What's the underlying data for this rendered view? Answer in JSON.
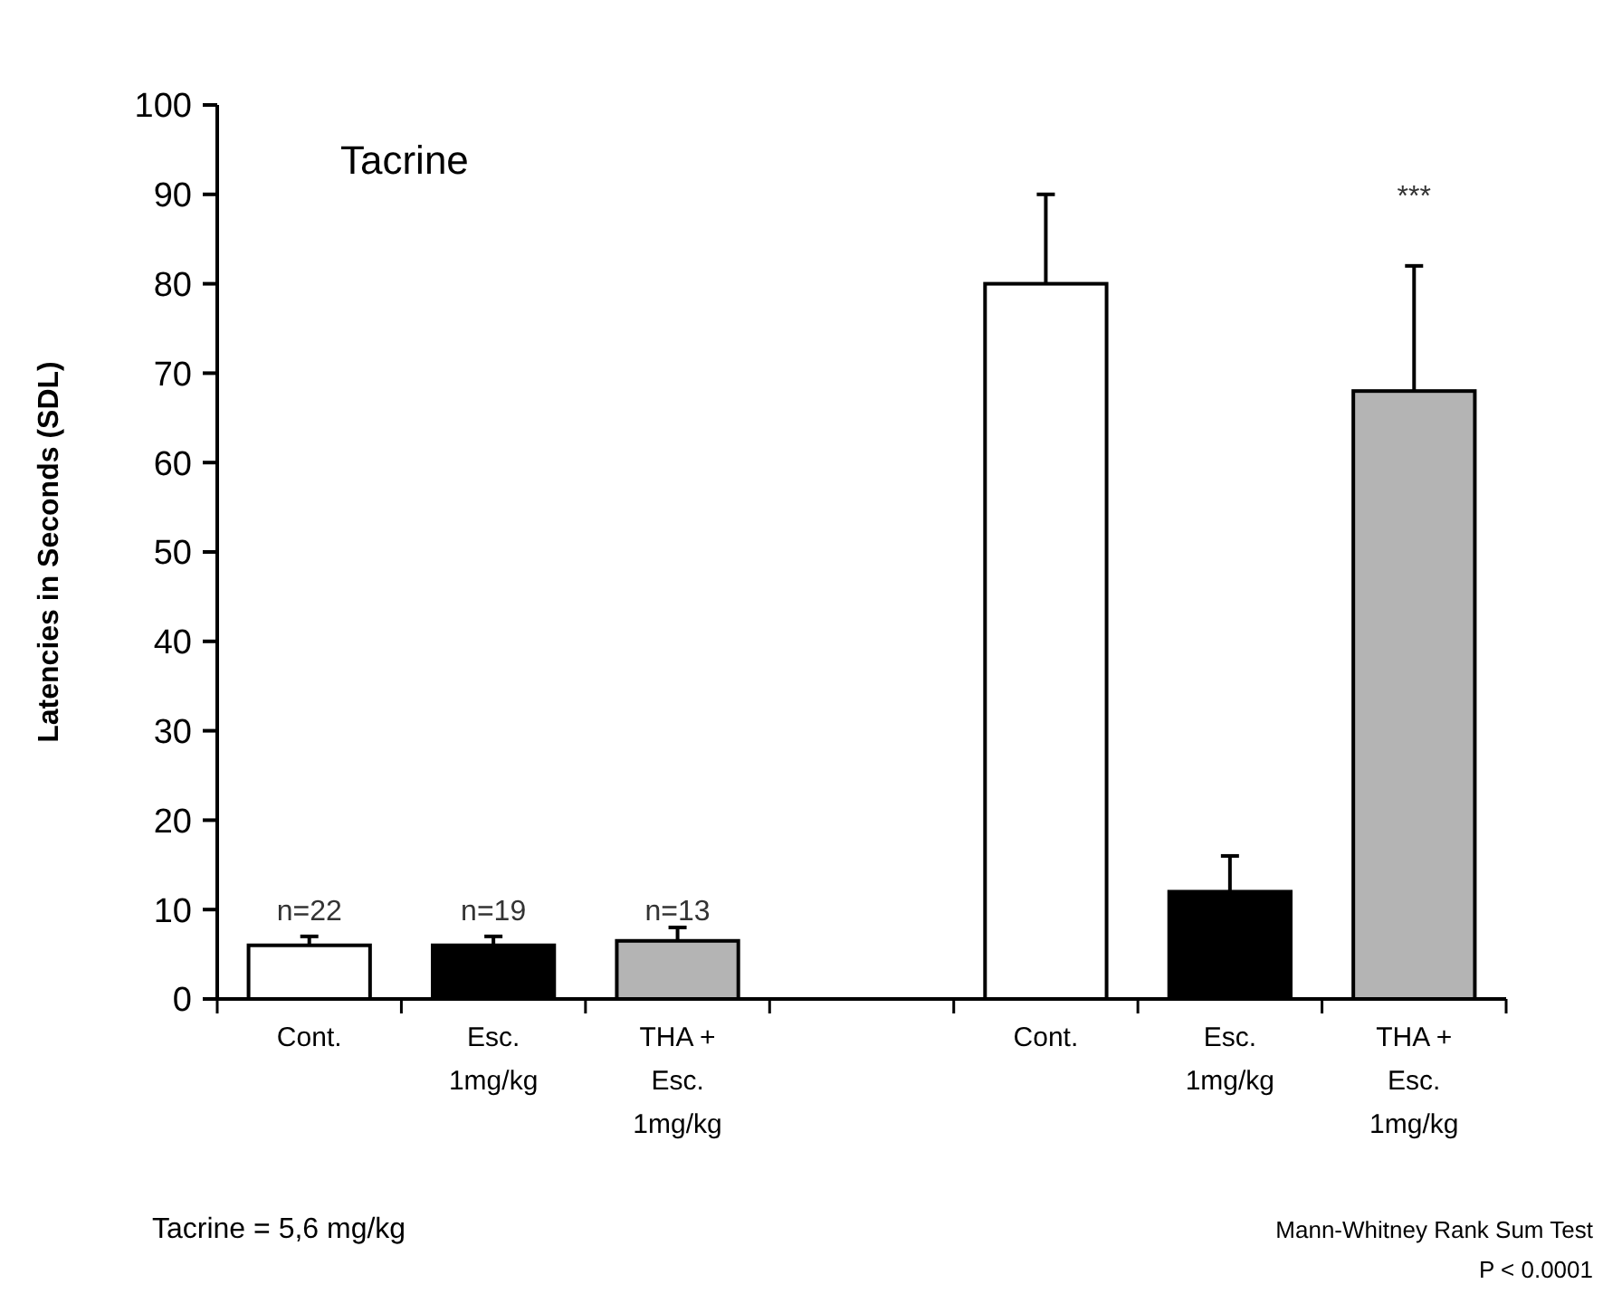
{
  "chart_data": {
    "type": "bar",
    "title": "Tacrine",
    "ylabel": "Latencies in Seconds   (SDL)",
    "categories": [
      "Cont.",
      "Esc.\n1mg/kg",
      "THA +\nEsc.\n1mg/kg",
      null,
      "Cont.",
      "Esc.\n1mg/kg",
      "THA +\nEsc.\n1mg/kg"
    ],
    "values": [
      6,
      6,
      6.5,
      null,
      80,
      12,
      68
    ],
    "colors": [
      "#ffffff",
      "#000000",
      "#b4b4b4",
      null,
      "#ffffff",
      "#000000",
      "#b4b4b4"
    ],
    "errors": [
      [
        6,
        7
      ],
      [
        6,
        7
      ],
      [
        6.5,
        8
      ],
      null,
      [
        80,
        90
      ],
      [
        12,
        16
      ],
      [
        68,
        82
      ]
    ],
    "ylim": [
      0,
      100
    ],
    "yticks": [
      0,
      10,
      20,
      30,
      40,
      50,
      60,
      70,
      80,
      90,
      100
    ],
    "grid": false,
    "annotations": [
      "Tacrine = 5,6 mg/kg",
      "Mann-Whitney Rank Sum Test\nP < 0.0001",
      "n=22",
      "n=19",
      "n=13",
      "***"
    ]
  }
}
